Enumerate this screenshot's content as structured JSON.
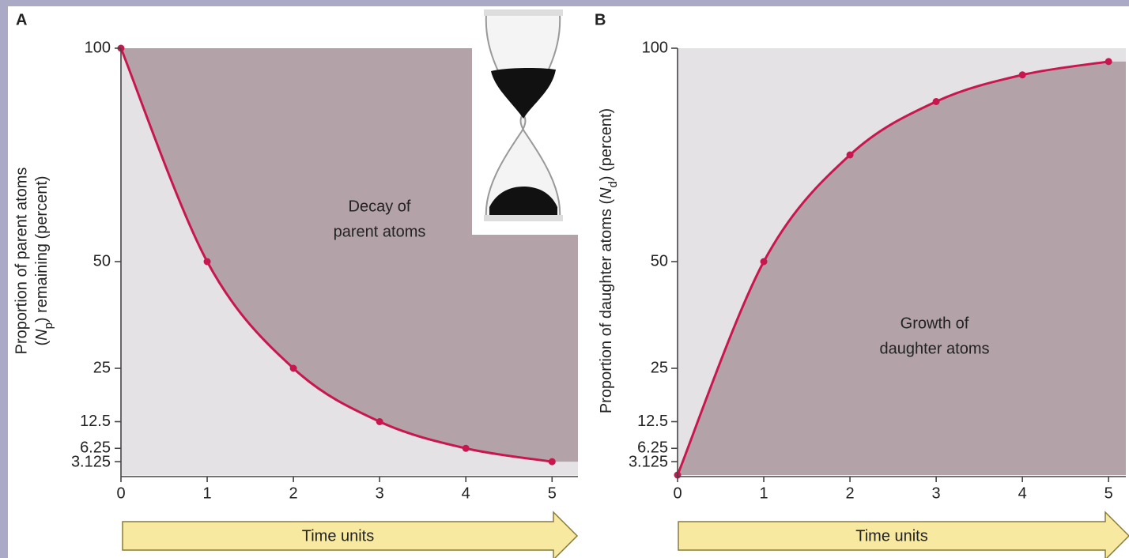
{
  "chart_data": [
    {
      "type": "line",
      "panel_label": "A",
      "y_label": {
        "line1": "Proportion of parent atoms",
        "line2": [
          "(",
          "N",
          "p",
          ") remaining (percent)"
        ]
      },
      "x_label": "Time units",
      "annotation": [
        "Decay of",
        "parent atoms"
      ],
      "x": [
        0,
        1,
        2,
        3,
        4,
        5
      ],
      "series": [
        {
          "color": "#c8174f",
          "values": [
            100,
            50,
            25,
            12.5,
            6.25,
            3.125
          ]
        }
      ],
      "xlim": [
        0,
        5.3
      ],
      "ylim": [
        0,
        100
      ],
      "xticks": [
        0,
        1,
        2,
        3,
        4,
        5
      ],
      "yticks": [
        100,
        50,
        25,
        12.5,
        6.25,
        3.125
      ],
      "fill_above": "#b3a3a9",
      "fill_below": "#e4e2e5"
    },
    {
      "type": "line",
      "panel_label": "B",
      "y_label": {
        "line1": [
          "Proportion of daughter atoms (",
          "N",
          "d",
          ") (percent)"
        ]
      },
      "x_label": "Time units",
      "annotation": [
        "Growth of",
        "daughter atoms"
      ],
      "x": [
        0,
        1,
        2,
        3,
        4,
        5
      ],
      "series": [
        {
          "color": "#c8174f",
          "values": [
            0,
            50,
            75,
            87.5,
            93.75,
            96.875
          ]
        }
      ],
      "xlim": [
        0,
        5.2
      ],
      "ylim": [
        0,
        100
      ],
      "xticks": [
        0,
        1,
        2,
        3,
        4,
        5
      ],
      "yticks": [
        100,
        50,
        25,
        12.5,
        6.25,
        3.125
      ],
      "fill_above": "#e4e2e5",
      "fill_below": "#b3a3a9"
    }
  ]
}
